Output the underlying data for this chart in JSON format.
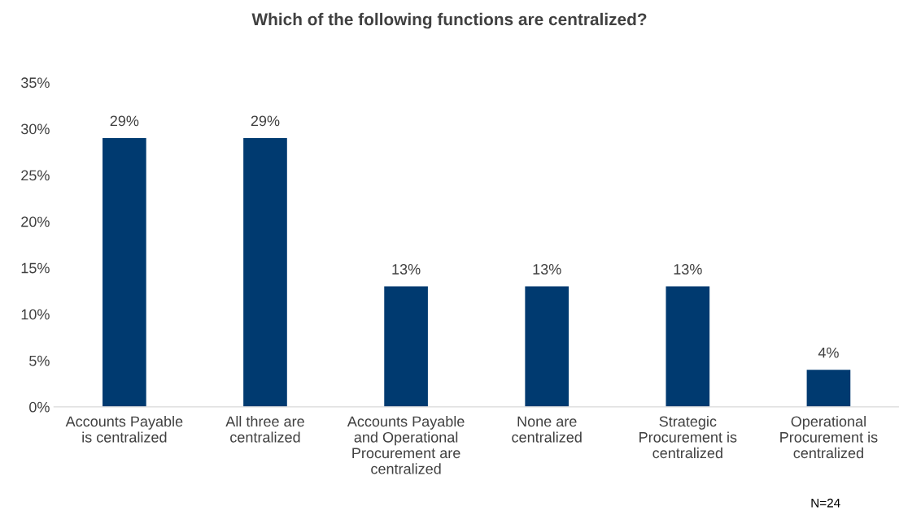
{
  "chart_data": {
    "type": "bar",
    "title": "Which of the following functions are centralized?",
    "categories": [
      "Accounts Payable\nis centralized",
      "All three are\ncentralized",
      "Accounts Payable\nand Operational\nProcurement are\ncentralized",
      "None are\ncentralized",
      "Strategic\nProcurement is\ncentralized",
      "Operational\nProcurement is\ncentralized"
    ],
    "values": [
      29,
      29,
      13,
      13,
      13,
      4
    ],
    "value_labels": [
      "29%",
      "29%",
      "13%",
      "13%",
      "13%",
      "4%"
    ],
    "color": "#003a70",
    "ylim": [
      0,
      35
    ],
    "yticks": [
      {
        "value": 0,
        "label": "0%"
      },
      {
        "value": 5,
        "label": "5%"
      },
      {
        "value": 10,
        "label": "10%"
      },
      {
        "value": 15,
        "label": "15%"
      },
      {
        "value": 20,
        "label": "20%"
      },
      {
        "value": 25,
        "label": "25%"
      },
      {
        "value": 30,
        "label": "30%"
      },
      {
        "value": 35,
        "label": "35%"
      }
    ],
    "grid": false,
    "legend": false,
    "annotations": [
      "N=24"
    ]
  }
}
